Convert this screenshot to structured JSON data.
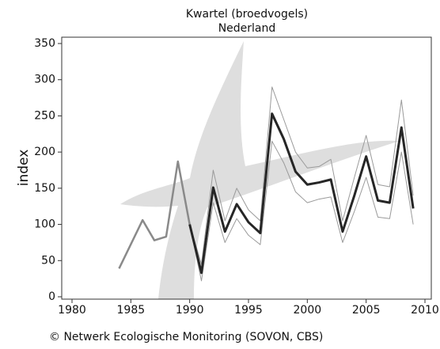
{
  "chart_data": {
    "type": "line",
    "title": "Kwartel (broedvogels)",
    "subtitle": "Nederland",
    "y_label": "index",
    "footer": "© Netwerk Ecologische Monitoring (SOVON, CBS)",
    "xlim": [
      1980,
      2010
    ],
    "xticks": [
      1980,
      1985,
      1990,
      1995,
      2000,
      2005,
      2010
    ],
    "ylim": [
      0,
      350
    ],
    "yticks": [
      0,
      50,
      100,
      150,
      200,
      250,
      300,
      350
    ],
    "series": [
      {
        "color": "#8a8a8a",
        "width": 2.5,
        "x": [
          1984,
          1986,
          1987,
          1988,
          1989,
          1990
        ],
        "values": [
          39,
          106,
          78,
          83,
          187,
          100
        ]
      },
      {
        "color": "#9a9a9a",
        "width": 1,
        "x": [
          1990,
          1991,
          1992,
          1993,
          1994,
          1995,
          1996,
          1997,
          1998,
          1999,
          2000,
          2001,
          2002,
          2003,
          2004,
          2005,
          2006,
          2007,
          2008,
          2009
        ],
        "values": [
          100,
          45,
          175,
          105,
          150,
          120,
          105,
          290,
          245,
          200,
          178,
          180,
          190,
          105,
          165,
          223,
          155,
          152,
          272,
          140
        ]
      },
      {
        "color": "#9a9a9a",
        "width": 1,
        "x": [
          1990,
          1991,
          1992,
          1993,
          1994,
          1995,
          1996,
          1997,
          1998,
          1999,
          2000,
          2001,
          2002,
          2003,
          2004,
          2005,
          2006,
          2007,
          2008,
          2009
        ],
        "values": [
          100,
          22,
          130,
          75,
          108,
          85,
          72,
          215,
          185,
          145,
          130,
          135,
          138,
          75,
          118,
          165,
          110,
          108,
          200,
          100
        ]
      },
      {
        "color": "#262626",
        "width": 3,
        "x": [
          1990,
          1991,
          1992,
          1993,
          1994,
          1995,
          1996,
          1997,
          1998,
          1999,
          2000,
          2001,
          2002,
          2003,
          2004,
          2005,
          2006,
          2007,
          2008,
          2009
        ],
        "values": [
          100,
          33,
          151,
          90,
          128,
          103,
          88,
          253,
          218,
          173,
          155,
          158,
          162,
          90,
          140,
          194,
          133,
          130,
          234,
          122
        ]
      }
    ]
  }
}
